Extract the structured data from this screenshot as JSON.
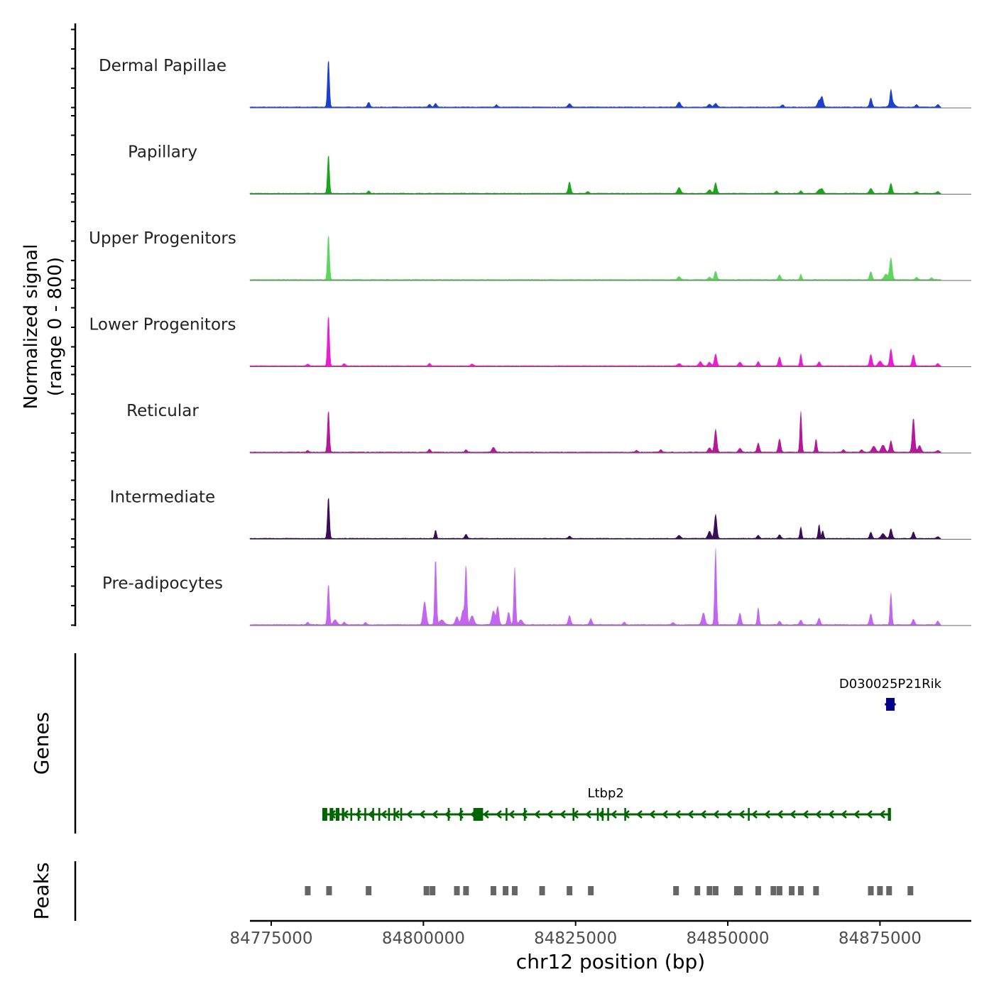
{
  "chart_data": {
    "type": "area",
    "chromosome": "chr12",
    "xlabel": "chr12 position (bp)",
    "ylabel_line1": "Normalized signal",
    "ylabel_line2": "(range 0 - 800)",
    "xlim": [
      84771500,
      84890000
    ],
    "xticks": [
      84775000,
      84800000,
      84825000,
      84850000,
      84875000
    ],
    "xtick_labels": [
      "84775000",
      "84800000",
      "84825000",
      "84850000",
      "84875000"
    ],
    "signal_end": 84885000,
    "ylim": [
      0,
      800
    ],
    "tracks": [
      {
        "name": "Dermal Papillae",
        "color": "#1a3fd1",
        "peaks": [
          [
            84784400,
            800,
            160
          ],
          [
            84791000,
            80,
            200
          ],
          [
            84801000,
            45,
            200
          ],
          [
            84802000,
            60,
            200
          ],
          [
            84812000,
            40,
            200
          ],
          [
            84824000,
            55,
            250
          ],
          [
            84842000,
            85,
            250
          ],
          [
            84847000,
            50,
            250
          ],
          [
            84848000,
            60,
            250
          ],
          [
            84859000,
            40,
            200
          ],
          [
            84865000,
            110,
            250
          ],
          [
            84865500,
            160,
            200
          ],
          [
            84873500,
            150,
            200
          ],
          [
            84876800,
            230,
            150
          ],
          [
            84877000,
            80,
            400
          ],
          [
            84881000,
            40,
            200
          ],
          [
            84884500,
            45,
            200
          ]
        ]
      },
      {
        "name": "Papillary",
        "color": "#1aa61a",
        "peaks": [
          [
            84784400,
            650,
            160
          ],
          [
            84791000,
            40,
            200
          ],
          [
            84824000,
            190,
            200
          ],
          [
            84827000,
            30,
            200
          ],
          [
            84842000,
            100,
            250
          ],
          [
            84847000,
            60,
            250
          ],
          [
            84848000,
            180,
            200
          ],
          [
            84858000,
            40,
            200
          ],
          [
            84862000,
            40,
            200
          ],
          [
            84865000,
            60,
            250
          ],
          [
            84865500,
            70,
            200
          ],
          [
            84873500,
            80,
            250
          ],
          [
            84876800,
            170,
            200
          ],
          [
            84881000,
            30,
            200
          ],
          [
            84884500,
            30,
            200
          ]
        ]
      },
      {
        "name": "Upper Progenitors",
        "color": "#5cd65c",
        "peaks": [
          [
            84784400,
            750,
            160
          ],
          [
            84842000,
            50,
            250
          ],
          [
            84847000,
            40,
            250
          ],
          [
            84848000,
            140,
            200
          ],
          [
            84858500,
            80,
            200
          ],
          [
            84862000,
            90,
            150
          ],
          [
            84873500,
            130,
            200
          ],
          [
            84876000,
            90,
            300
          ],
          [
            84876800,
            360,
            200
          ],
          [
            84881000,
            40,
            200
          ],
          [
            84883500,
            30,
            200
          ]
        ]
      },
      {
        "name": "Lower Progenitors",
        "color": "#e81fd0",
        "peaks": [
          [
            84781000,
            30,
            200
          ],
          [
            84784400,
            850,
            160
          ],
          [
            84787000,
            40,
            200
          ],
          [
            84801000,
            40,
            200
          ],
          [
            84808000,
            30,
            200
          ],
          [
            84842000,
            40,
            250
          ],
          [
            84845500,
            70,
            250
          ],
          [
            84847000,
            60,
            250
          ],
          [
            84848000,
            200,
            200
          ],
          [
            84852000,
            60,
            250
          ],
          [
            84855000,
            70,
            200
          ],
          [
            84858500,
            150,
            200
          ],
          [
            84862000,
            200,
            150
          ],
          [
            84865000,
            70,
            200
          ],
          [
            84873500,
            190,
            200
          ],
          [
            84875000,
            80,
            300
          ],
          [
            84876800,
            280,
            200
          ],
          [
            84880500,
            190,
            200
          ],
          [
            84884500,
            40,
            200
          ]
        ]
      },
      {
        "name": "Reticular",
        "color": "#b5199a",
        "peaks": [
          [
            84781000,
            30,
            200
          ],
          [
            84784400,
            700,
            160
          ],
          [
            84801000,
            50,
            200
          ],
          [
            84807000,
            40,
            200
          ],
          [
            84811500,
            80,
            250
          ],
          [
            84835000,
            30,
            200
          ],
          [
            84839000,
            40,
            200
          ],
          [
            84847000,
            70,
            250
          ],
          [
            84848000,
            380,
            200
          ],
          [
            84852000,
            60,
            250
          ],
          [
            84855000,
            150,
            200
          ],
          [
            84858500,
            220,
            200
          ],
          [
            84862000,
            680,
            150
          ],
          [
            84864500,
            220,
            150
          ],
          [
            84869000,
            40,
            200
          ],
          [
            84872000,
            40,
            200
          ],
          [
            84874000,
            100,
            300
          ],
          [
            84875500,
            120,
            300
          ],
          [
            84876800,
            190,
            200
          ],
          [
            84880500,
            570,
            200
          ],
          [
            84881500,
            110,
            250
          ],
          [
            84884500,
            30,
            200
          ]
        ]
      },
      {
        "name": "Intermediate",
        "color": "#3a0d59",
        "peaks": [
          [
            84784400,
            700,
            160
          ],
          [
            84802000,
            140,
            150
          ],
          [
            84807000,
            70,
            200
          ],
          [
            84824000,
            40,
            200
          ],
          [
            84842000,
            50,
            250
          ],
          [
            84847000,
            120,
            250
          ],
          [
            84848000,
            400,
            200
          ],
          [
            84855000,
            50,
            200
          ],
          [
            84858500,
            60,
            200
          ],
          [
            84862000,
            190,
            150
          ],
          [
            84865000,
            230,
            150
          ],
          [
            84865600,
            130,
            150
          ],
          [
            84873500,
            100,
            200
          ],
          [
            84875500,
            80,
            300
          ],
          [
            84876800,
            160,
            200
          ],
          [
            84880500,
            110,
            200
          ],
          [
            84884500,
            30,
            200
          ]
        ]
      },
      {
        "name": "Pre-adipocytes",
        "color": "#c266f0",
        "peaks": [
          [
            84781000,
            40,
            200
          ],
          [
            84784400,
            680,
            160
          ],
          [
            84785500,
            80,
            300
          ],
          [
            84787000,
            40,
            200
          ],
          [
            84790500,
            40,
            200
          ],
          [
            84800200,
            380,
            250
          ],
          [
            84802000,
            1120,
            150
          ],
          [
            84803000,
            80,
            400
          ],
          [
            84805500,
            130,
            250
          ],
          [
            84806500,
            240,
            250
          ],
          [
            84807000,
            970,
            150
          ],
          [
            84808000,
            150,
            300
          ],
          [
            84811500,
            230,
            250
          ],
          [
            84812200,
            300,
            200
          ],
          [
            84814000,
            210,
            200
          ],
          [
            84815000,
            950,
            150
          ],
          [
            84816000,
            80,
            300
          ],
          [
            84824000,
            150,
            200
          ],
          [
            84827500,
            100,
            200
          ],
          [
            84833000,
            40,
            200
          ],
          [
            84841000,
            40,
            200
          ],
          [
            84846000,
            200,
            250
          ],
          [
            84848000,
            1270,
            150
          ],
          [
            84852000,
            190,
            200
          ],
          [
            84855000,
            290,
            150
          ],
          [
            84858500,
            60,
            200
          ],
          [
            84862000,
            80,
            200
          ],
          [
            84865000,
            110,
            200
          ],
          [
            84873500,
            180,
            200
          ],
          [
            84876800,
            530,
            150
          ],
          [
            84880500,
            90,
            200
          ],
          [
            84884500,
            60,
            200
          ]
        ]
      }
    ],
    "genes_label": "Genes",
    "genes": [
      {
        "name": "D030025P21Rik",
        "color": "#00008b",
        "start": 84875800,
        "end": 84877600,
        "strand": "-",
        "exons": [
          [
            84876000,
            84877400
          ]
        ]
      },
      {
        "name": "Ltbp2",
        "color": "#006400",
        "start": 84783400,
        "end": 84876500,
        "strand": "-",
        "exons": [
          [
            84783400,
            84784200
          ],
          [
            84784600,
            84785200
          ],
          [
            84785600,
            84786200
          ],
          [
            84786600,
            84787000
          ],
          [
            84788000,
            84788300
          ],
          [
            84789200,
            84789500
          ],
          [
            84790300,
            84790600
          ],
          [
            84791600,
            84791900
          ],
          [
            84792600,
            84792900
          ],
          [
            84794200,
            84794500
          ],
          [
            84795100,
            84795400
          ],
          [
            84796200,
            84796500
          ],
          [
            84804000,
            84804300
          ],
          [
            84806000,
            84806300
          ],
          [
            84808200,
            84809800
          ],
          [
            84813500,
            84813800
          ],
          [
            84816500,
            84816800
          ],
          [
            84824500,
            84824800
          ],
          [
            84828500,
            84828800
          ],
          [
            84829300,
            84829500
          ],
          [
            84830200,
            84830500
          ],
          [
            84833000,
            84833300
          ],
          [
            84853300,
            84853600
          ],
          [
            84876300,
            84876800
          ]
        ]
      }
    ],
    "peaks_label": "Peaks",
    "peaks": [
      84781000,
      84784500,
      84791000,
      84800500,
      84801500,
      84805500,
      84807000,
      84811500,
      84813500,
      84815000,
      84819500,
      84824000,
      84827500,
      84841500,
      84845000,
      84847000,
      84848000,
      84851500,
      84852000,
      84855000,
      84857500,
      84858500,
      84860500,
      84862000,
      84864500,
      84873500,
      84875000,
      84876500,
      84880000
    ]
  }
}
